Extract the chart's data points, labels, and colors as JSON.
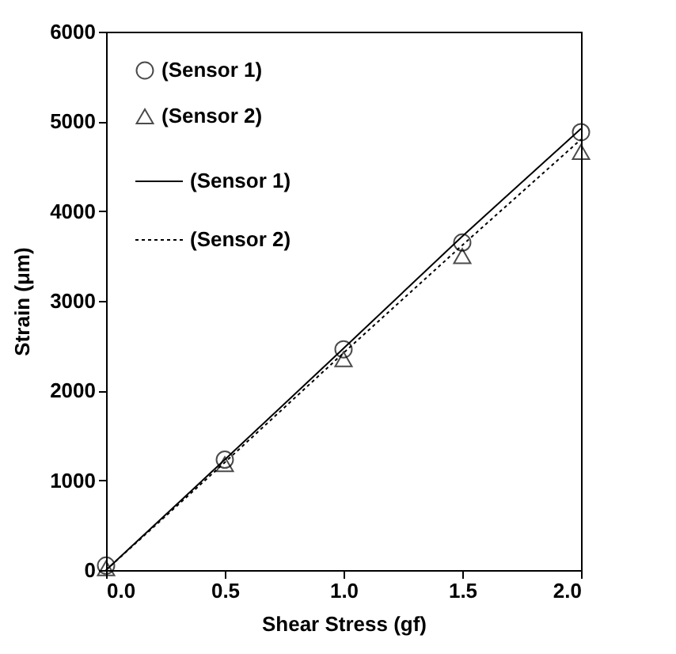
{
  "chart_data": {
    "type": "scatter",
    "xlabel": "Shear Stress (gf)",
    "ylabel": "Strain (μm)",
    "x": [
      0,
      0.5,
      1,
      1.5,
      2
    ],
    "series": [
      {
        "name": "(Sensor 1)",
        "marker": "circle",
        "color": "#000000",
        "values": [
          50,
          1230,
          2460,
          3650,
          4880
        ]
      },
      {
        "name": "(Sensor 2)",
        "marker": "triangle",
        "color": "#000000",
        "values": [
          20,
          1180,
          2350,
          3500,
          4660
        ]
      },
      {
        "name": "(Sensor 1)",
        "type": "line",
        "line_style": "solid",
        "color": "#000000",
        "values": [
          0,
          1230,
          2470,
          3720,
          4920
        ]
      },
      {
        "name": "(Sensor 2)",
        "type": "line",
        "line_style": "dotted",
        "color": "#000000",
        "values": [
          0,
          1200,
          2420,
          3620,
          4800
        ]
      }
    ],
    "xlim": [
      0,
      2
    ],
    "xticks": [
      {
        "value": 0,
        "label": "0.0"
      },
      {
        "value": 0.5,
        "label": "0.5"
      },
      {
        "value": 1,
        "label": "1.0"
      },
      {
        "value": 1.5,
        "label": "1.5"
      },
      {
        "value": 2,
        "label": "2.0"
      }
    ],
    "ylim": [
      0,
      6000
    ],
    "yticks": [
      0,
      1000,
      2000,
      3000,
      4000,
      5000,
      6000
    ],
    "grid": false,
    "legend": "top left"
  }
}
